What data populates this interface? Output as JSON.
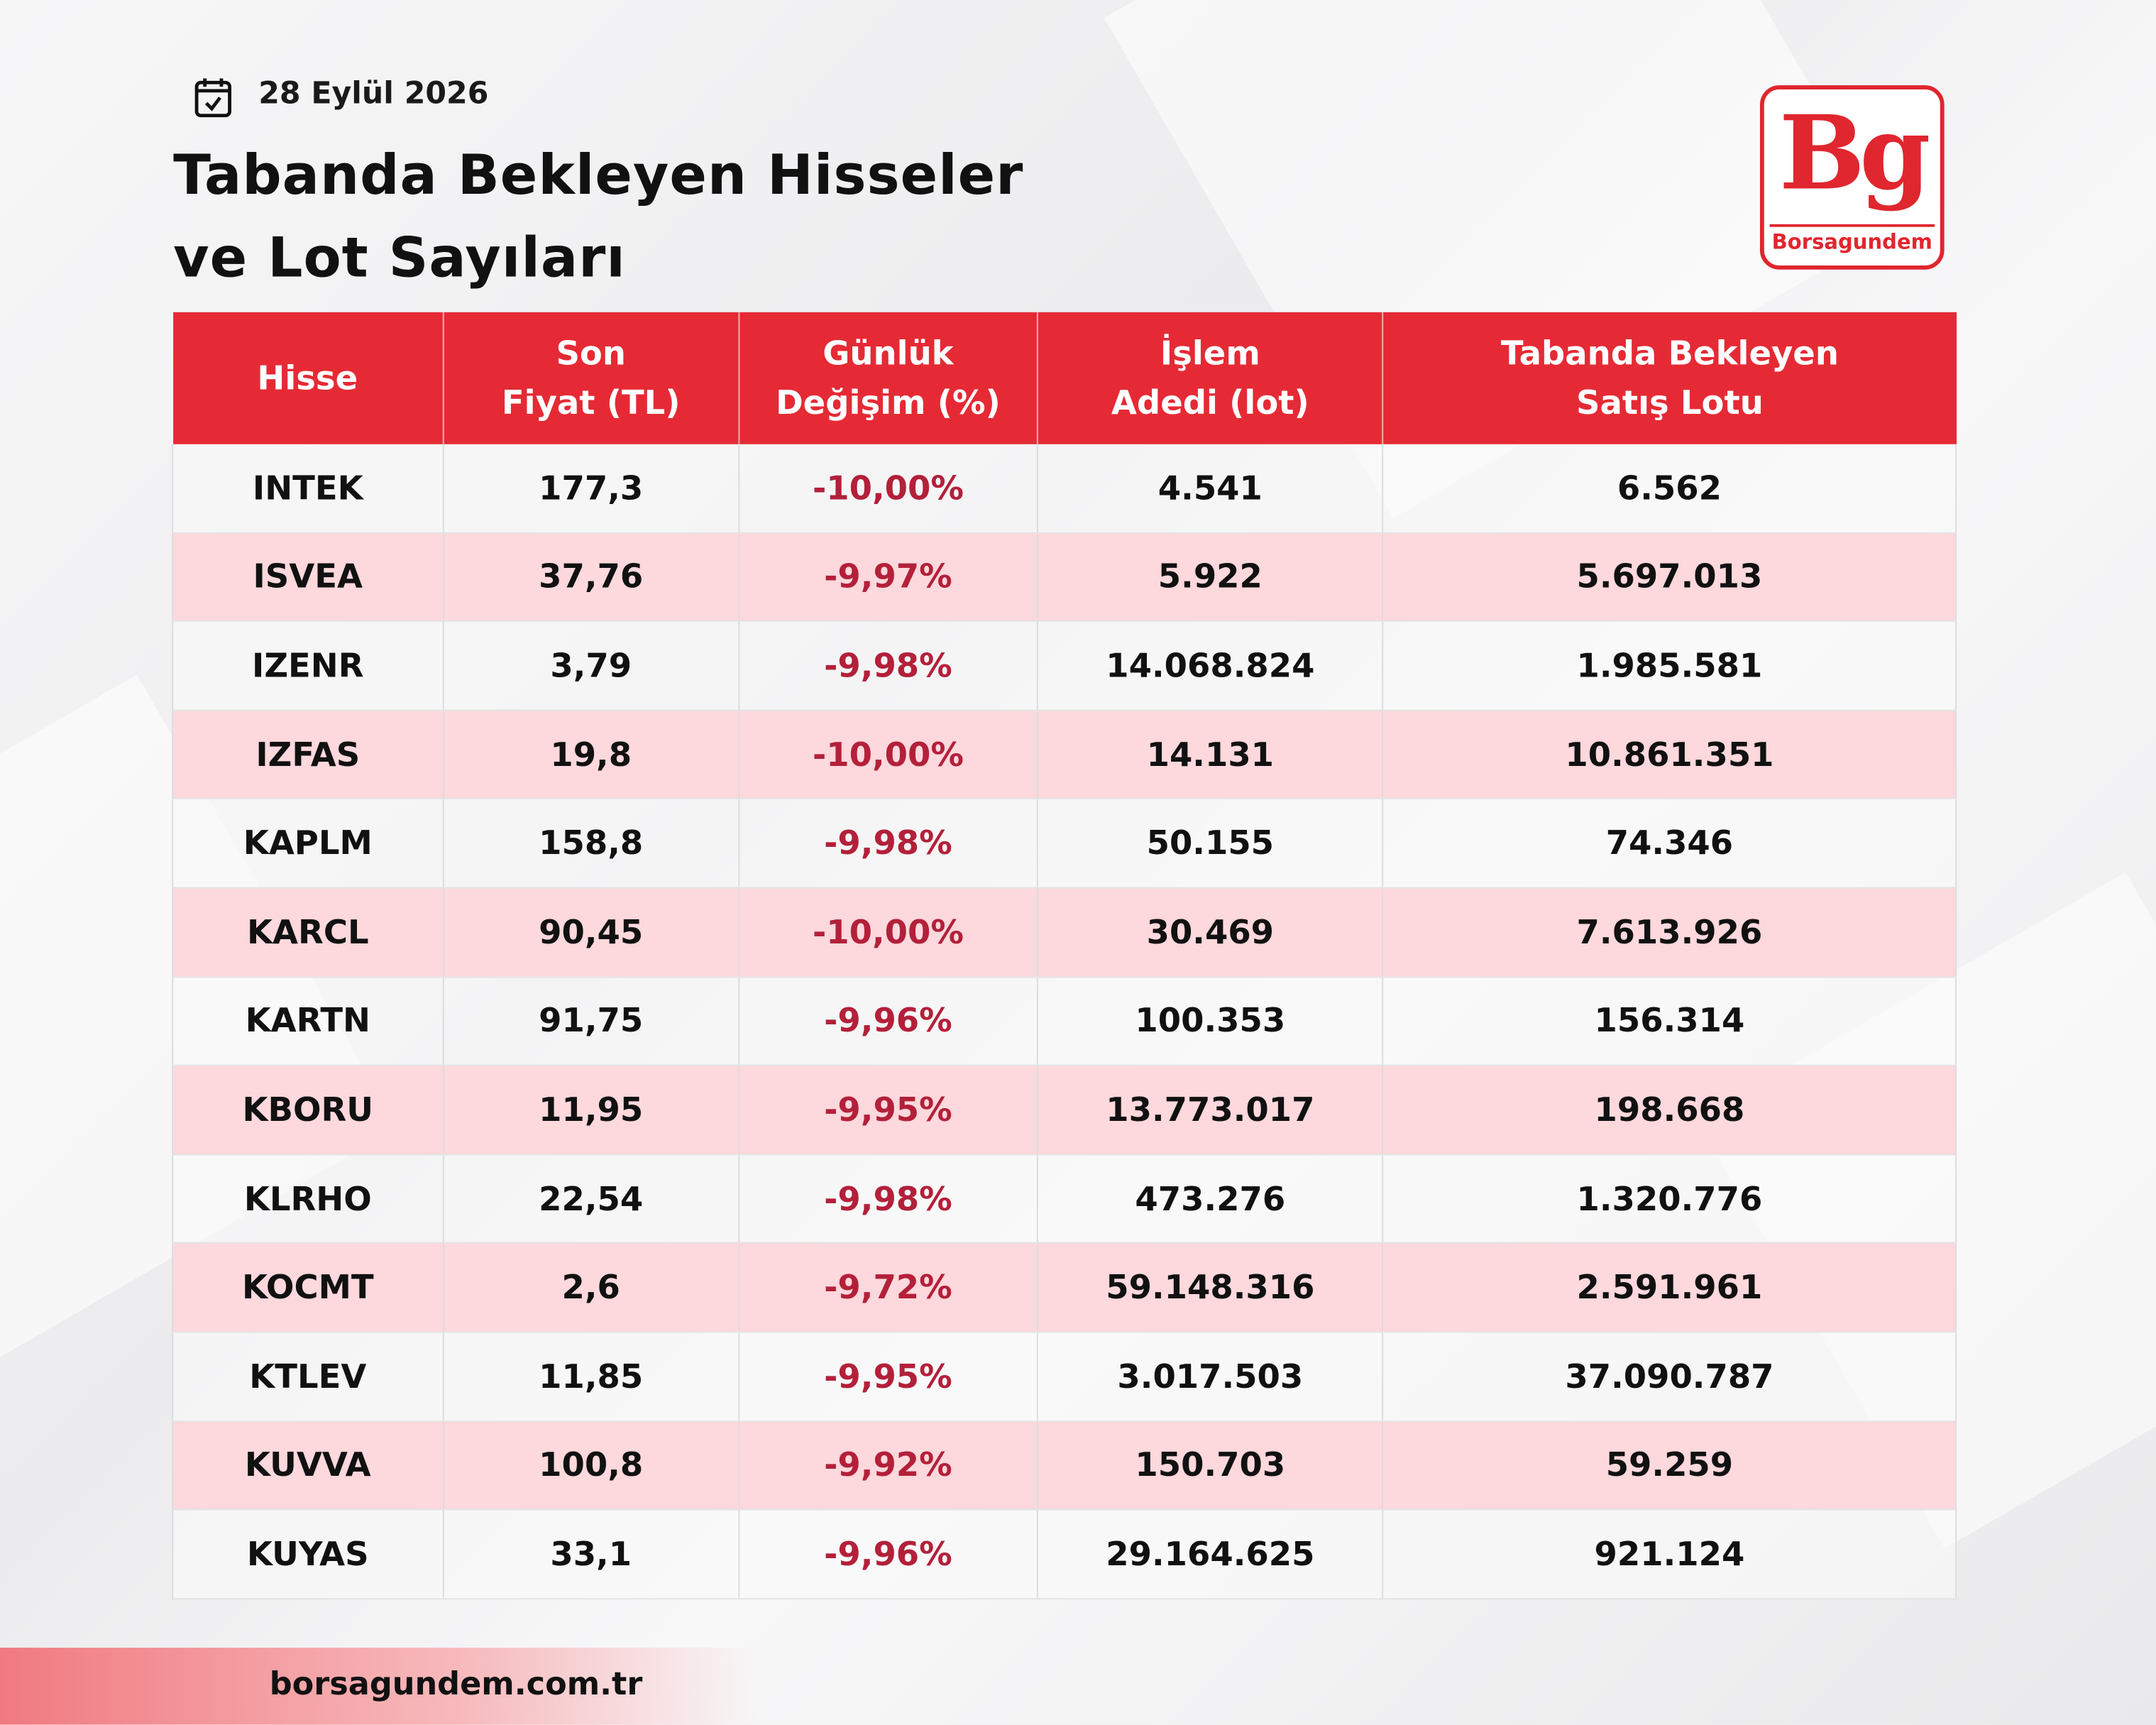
{
  "header": {
    "date": "28 Eylül 2026",
    "title_lines": [
      "Tabanda Bekleyen Hisseler",
      "ve Lot Sayıları"
    ],
    "logo": "Bg",
    "logo_name": "Borsagundem"
  },
  "table": {
    "columns": [
      [
        "Hisse"
      ],
      [
        "Son",
        "Fiyat (TL)"
      ],
      [
        "Günlük",
        "Değişim (%)"
      ],
      [
        "İşlem",
        "Adedi (lot)"
      ],
      [
        "Tabanda Bekleyen",
        "Satış Lotu"
      ]
    ],
    "rows": [
      [
        "INTEK",
        "177,3",
        "-10,00%",
        "4.541",
        "6.562"
      ],
      [
        "ISVEA",
        "37,76",
        "-9,97%",
        "5.922",
        "5.697.013"
      ],
      [
        "IZENR",
        "3,79",
        "-9,98%",
        "14.068.824",
        "1.985.581"
      ],
      [
        "IZFAS",
        "19,8",
        "-10,00%",
        "14.131",
        "10.861.351"
      ],
      [
        "KAPLM",
        "158,8",
        "-9,98%",
        "50.155",
        "74.346"
      ],
      [
        "KARCL",
        "90,45",
        "-10,00%",
        "30.469",
        "7.613.926"
      ],
      [
        "KARTN",
        "91,75",
        "-9,96%",
        "100.353",
        "156.314"
      ],
      [
        "KBORU",
        "11,95",
        "-9,95%",
        "13.773.017",
        "198.668"
      ],
      [
        "KLRHO",
        "22,54",
        "-9,98%",
        "473.276",
        "1.320.776"
      ],
      [
        "KOCMT",
        "2,6",
        "-9,72%",
        "59.148.316",
        "2.591.961"
      ],
      [
        "KTLEV",
        "11,85",
        "-9,95%",
        "3.017.503",
        "37.090.787"
      ],
      [
        "KUVVA",
        "100,8",
        "-9,92%",
        "150.703",
        "59.259"
      ],
      [
        "KUYAS",
        "33,1",
        "-9,96%",
        "29.164.625",
        "921.124"
      ]
    ]
  },
  "footer": {
    "url": "borsagundem.com.tr"
  }
}
